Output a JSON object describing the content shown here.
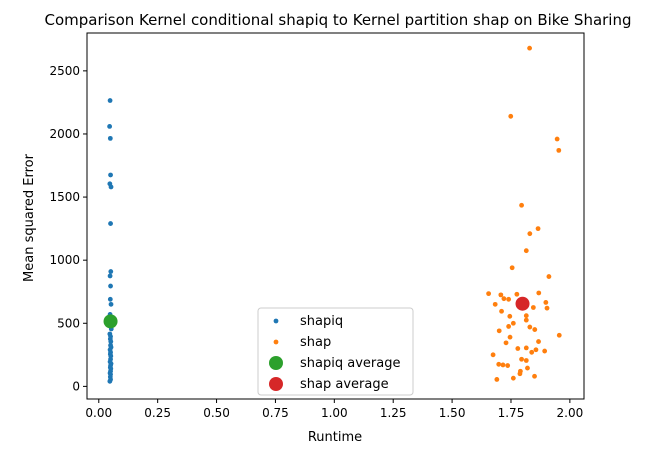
{
  "chart_data": {
    "type": "scatter",
    "title": "Comparison Kernel conditional shapiq to Kernel partition shap on Bike Sharing",
    "xlabel": "Runtime",
    "ylabel": "Mean squared Error",
    "xlim": [
      -0.05,
      2.06
    ],
    "ylim": [
      -100,
      2800
    ],
    "xticks": [
      "0.00",
      "0.25",
      "0.50",
      "0.75",
      "1.00",
      "1.25",
      "1.50",
      "1.75",
      "2.00"
    ],
    "xtick_values": [
      0,
      0.25,
      0.5,
      0.75,
      1.0,
      1.25,
      1.5,
      1.75,
      2.0
    ],
    "yticks": [
      "0",
      "500",
      "1000",
      "1500",
      "2000",
      "2500"
    ],
    "ytick_values": [
      0,
      500,
      1000,
      1500,
      2000,
      2500
    ],
    "legend_position": "lower center",
    "series": [
      {
        "name": "shapiq",
        "kind": "points",
        "color": "#1f77b4",
        "points": [
          [
            0.048,
            2265
          ],
          [
            0.046,
            2060
          ],
          [
            0.049,
            1965
          ],
          [
            0.05,
            1675
          ],
          [
            0.047,
            1605
          ],
          [
            0.052,
            1580
          ],
          [
            0.05,
            1290
          ],
          [
            0.051,
            910
          ],
          [
            0.048,
            875
          ],
          [
            0.05,
            795
          ],
          [
            0.049,
            690
          ],
          [
            0.052,
            650
          ],
          [
            0.048,
            570
          ],
          [
            0.05,
            545
          ],
          [
            0.051,
            520
          ],
          [
            0.049,
            490
          ],
          [
            0.053,
            455
          ],
          [
            0.047,
            415
          ],
          [
            0.05,
            395
          ],
          [
            0.049,
            375
          ],
          [
            0.051,
            355
          ],
          [
            0.05,
            325
          ],
          [
            0.052,
            310
          ],
          [
            0.048,
            290
          ],
          [
            0.05,
            270
          ],
          [
            0.049,
            255
          ],
          [
            0.051,
            240
          ],
          [
            0.05,
            215
          ],
          [
            0.048,
            195
          ],
          [
            0.052,
            180
          ],
          [
            0.05,
            165
          ],
          [
            0.049,
            150
          ],
          [
            0.051,
            140
          ],
          [
            0.05,
            120
          ],
          [
            0.048,
            105
          ],
          [
            0.05,
            95
          ],
          [
            0.049,
            75
          ],
          [
            0.05,
            55
          ],
          [
            0.047,
            40
          ]
        ]
      },
      {
        "name": "shap",
        "kind": "points",
        "color": "#ff7f0e",
        "points": [
          [
            1.829,
            2680
          ],
          [
            1.749,
            2140
          ],
          [
            1.946,
            1960
          ],
          [
            1.953,
            1870
          ],
          [
            1.795,
            1435
          ],
          [
            1.865,
            1250
          ],
          [
            1.83,
            1210
          ],
          [
            1.815,
            1075
          ],
          [
            1.755,
            940
          ],
          [
            1.911,
            870
          ],
          [
            1.868,
            740
          ],
          [
            1.655,
            735
          ],
          [
            1.707,
            725
          ],
          [
            1.775,
            730
          ],
          [
            1.72,
            695
          ],
          [
            1.74,
            690
          ],
          [
            1.898,
            665
          ],
          [
            1.683,
            650
          ],
          [
            1.8,
            650
          ],
          [
            1.811,
            630
          ],
          [
            1.903,
            620
          ],
          [
            1.845,
            625
          ],
          [
            1.71,
            595
          ],
          [
            1.745,
            555
          ],
          [
            1.815,
            560
          ],
          [
            1.815,
            525
          ],
          [
            1.76,
            500
          ],
          [
            1.74,
            475
          ],
          [
            1.83,
            470
          ],
          [
            1.851,
            450
          ],
          [
            1.955,
            405
          ],
          [
            1.7,
            440
          ],
          [
            1.746,
            390
          ],
          [
            1.867,
            355
          ],
          [
            1.729,
            345
          ],
          [
            1.815,
            305
          ],
          [
            1.779,
            300
          ],
          [
            1.856,
            290
          ],
          [
            1.893,
            280
          ],
          [
            1.838,
            270
          ],
          [
            1.674,
            250
          ],
          [
            1.795,
            215
          ],
          [
            1.815,
            205
          ],
          [
            1.698,
            175
          ],
          [
            1.716,
            170
          ],
          [
            1.736,
            165
          ],
          [
            1.79,
            120
          ],
          [
            1.82,
            145
          ],
          [
            1.788,
            100
          ],
          [
            1.85,
            80
          ],
          [
            1.69,
            55
          ],
          [
            1.76,
            65
          ]
        ]
      },
      {
        "name": "shapiq average",
        "kind": "average",
        "color": "#2ca02c",
        "points": [
          [
            0.05,
            515
          ]
        ]
      },
      {
        "name": "shap average",
        "kind": "average",
        "color": "#d62728",
        "points": [
          [
            1.799,
            655
          ]
        ]
      }
    ]
  }
}
